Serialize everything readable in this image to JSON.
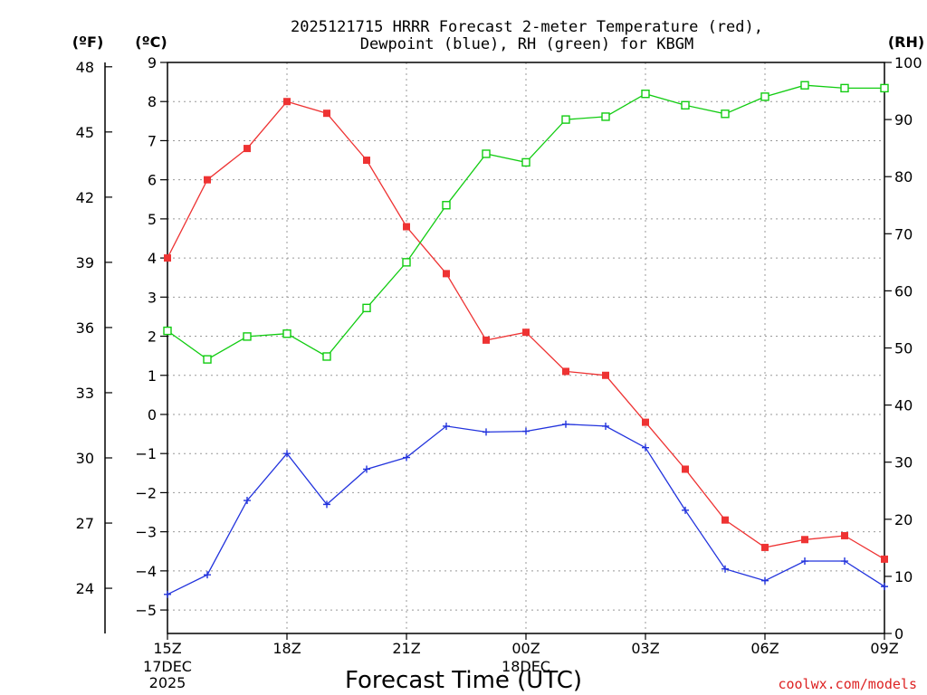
{
  "title_line1": "2025121715 HRRR Forecast 2-meter Temperature (red),",
  "title_line2": "Dewpoint (blue), RH (green) for KBGM",
  "unit_f": "(ºF)",
  "unit_c": "(ºC)",
  "unit_rh": "(RH)",
  "xlabel": "Forecast Time (UTC)",
  "credit": "coolwx.com/models",
  "colors": {
    "temperature": "#ee3333",
    "dewpoint": "#2233dd",
    "rh": "#11cc11",
    "grid": "#999999",
    "credit": "#dd2222"
  },
  "chart_data": {
    "type": "line",
    "x": [
      "15Z",
      "16Z",
      "17Z",
      "18Z",
      "19Z",
      "20Z",
      "21Z",
      "22Z",
      "23Z",
      "00Z",
      "01Z",
      "02Z",
      "03Z",
      "04Z",
      "05Z",
      "06Z",
      "07Z",
      "08Z",
      "09Z"
    ],
    "xticks": [
      {
        "label": "15Z",
        "sub": [
          "17DEC",
          "2025"
        ]
      },
      {
        "label": "18Z",
        "sub": []
      },
      {
        "label": "21Z",
        "sub": []
      },
      {
        "label": "00Z",
        "sub": [
          "18DEC"
        ]
      },
      {
        "label": "03Z",
        "sub": []
      },
      {
        "label": "06Z",
        "sub": []
      },
      {
        "label": "09Z",
        "sub": []
      }
    ],
    "xticks_index": [
      0,
      3,
      6,
      9,
      12,
      15,
      18
    ],
    "y_celsius_ticks": [
      "9",
      "8",
      "7",
      "6",
      "5",
      "4",
      "3",
      "2",
      "1",
      "0",
      "−1",
      "−2",
      "−3",
      "−4",
      "−5"
    ],
    "y_celsius_range": [
      -5.6,
      9.0
    ],
    "y_fahrenheit_ticks": [
      "48",
      "45",
      "42",
      "39",
      "36",
      "33",
      "30",
      "27",
      "24"
    ],
    "y_rh_ticks": [
      "100",
      "90",
      "80",
      "70",
      "60",
      "50",
      "40",
      "30",
      "20",
      "10",
      "0"
    ],
    "y_rh_range": [
      0,
      100
    ],
    "grid": true,
    "series": [
      {
        "name": "Temperature",
        "axis": "celsius",
        "marker": "filled-square",
        "values": [
          4.0,
          6.0,
          6.8,
          8.0,
          7.7,
          6.5,
          4.8,
          3.6,
          1.9,
          2.1,
          1.1,
          1.0,
          -0.2,
          -1.4,
          -2.7,
          -3.4,
          -3.2,
          -3.1,
          -3.7
        ]
      },
      {
        "name": "Dewpoint",
        "axis": "celsius",
        "marker": "plus",
        "values": [
          -4.6,
          -4.1,
          -2.2,
          -1.0,
          -2.3,
          -1.4,
          -1.1,
          -0.3,
          -0.45,
          -0.43,
          -0.25,
          -0.3,
          -0.85,
          -2.45,
          -3.95,
          -4.25,
          -3.75,
          -3.75,
          -4.4
        ]
      },
      {
        "name": "RH",
        "axis": "rh",
        "marker": "open-square",
        "values": [
          53.0,
          48.0,
          52.0,
          52.5,
          48.5,
          57.0,
          65.0,
          75.0,
          84.0,
          82.5,
          90.0,
          90.5,
          94.5,
          92.5,
          91.0,
          94.0,
          96.0,
          95.5,
          95.5
        ]
      }
    ]
  }
}
